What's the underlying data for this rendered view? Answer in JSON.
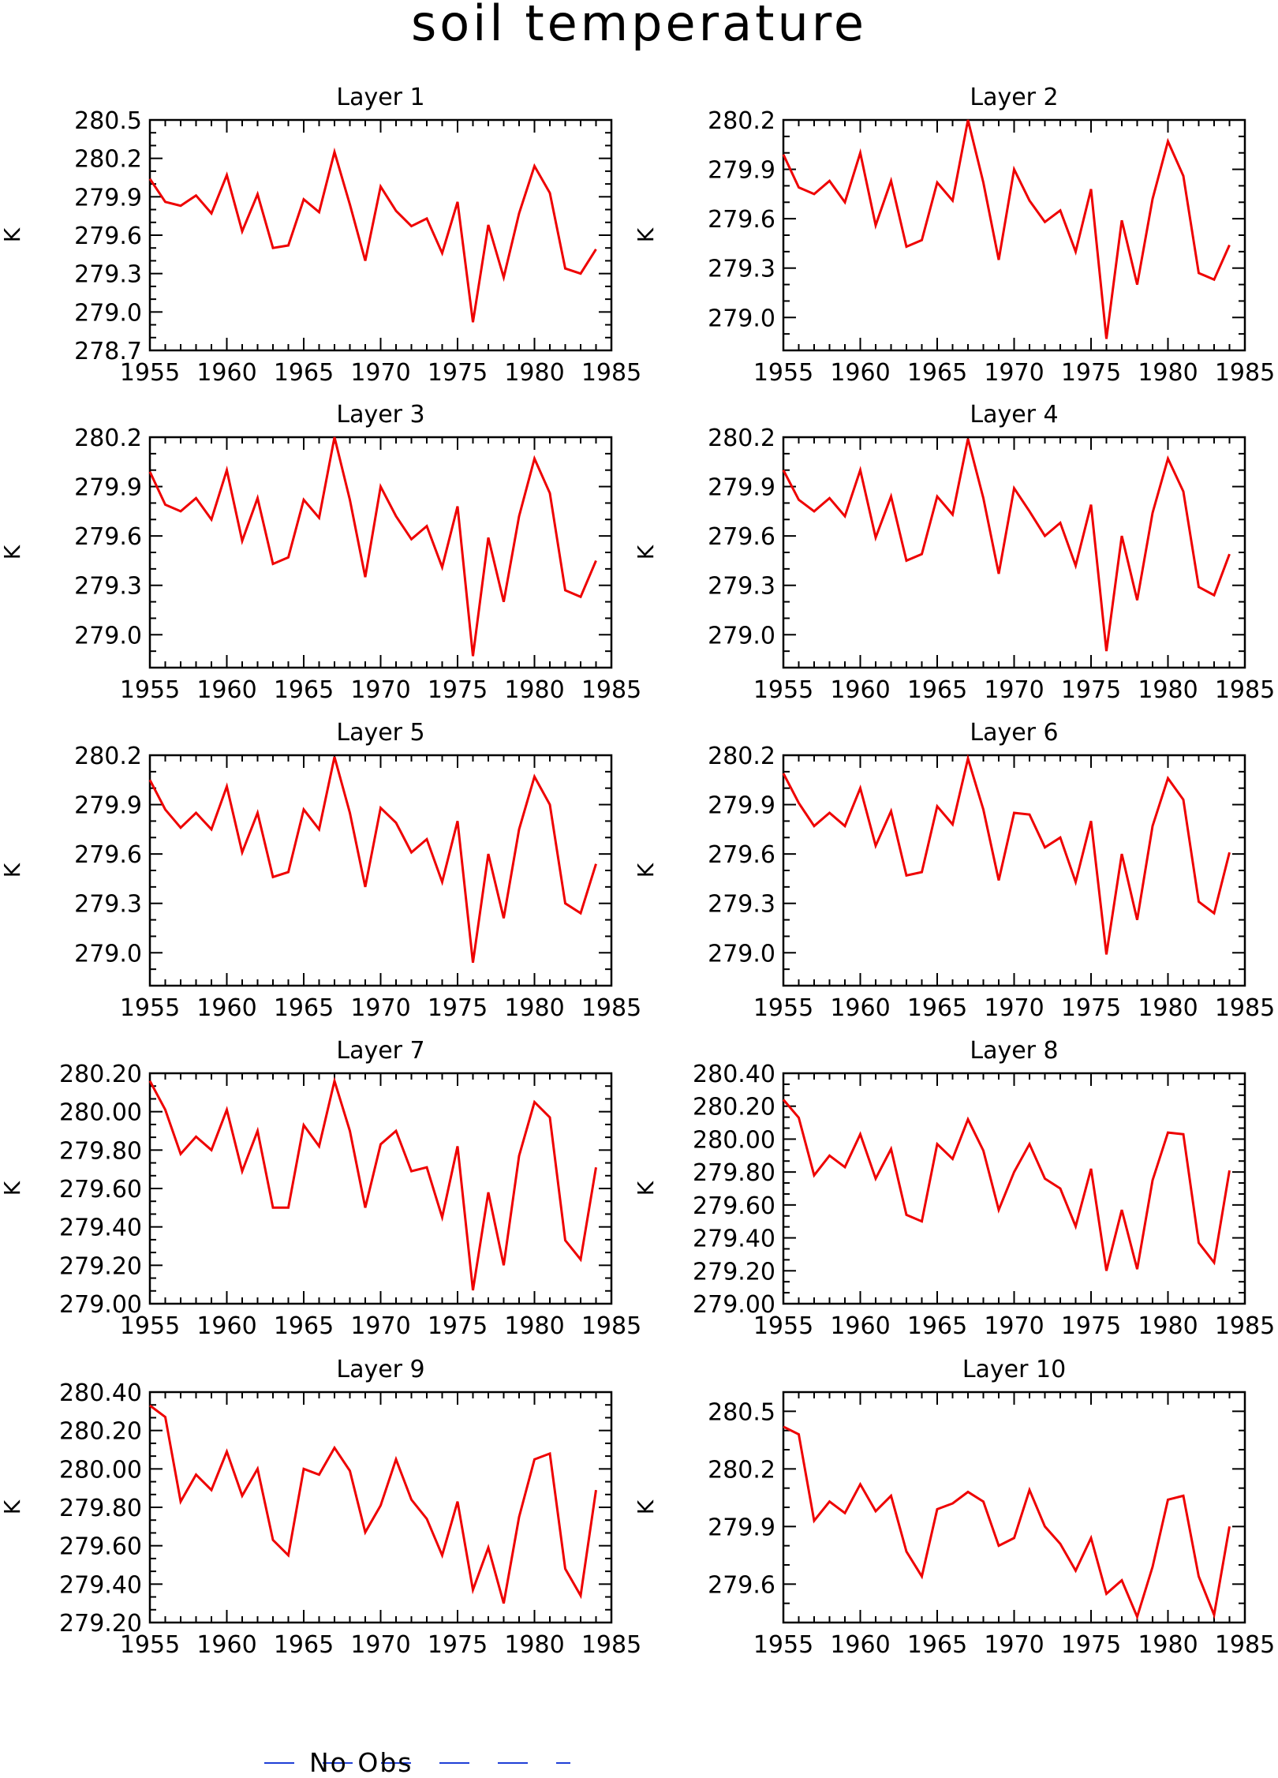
{
  "title": "soil temperature",
  "legend": {
    "label": "No Obs",
    "color": "#1f3fd6"
  },
  "series_color": "#ee0000",
  "chart_data": [
    {
      "type": "line",
      "title": "Layer 1",
      "ylabel": "K",
      "xlim": [
        1955,
        1985
      ],
      "xticks": [
        1955,
        1960,
        1965,
        1970,
        1975,
        1980,
        1985
      ],
      "ylim": [
        278.7,
        280.5
      ],
      "yticks": [
        "278.7",
        "279.0",
        "279.3",
        "279.6",
        "279.9",
        "280.2",
        "280.5"
      ],
      "x": [
        1955,
        1956,
        1957,
        1958,
        1959,
        1960,
        1961,
        1962,
        1963,
        1964,
        1965,
        1966,
        1967,
        1968,
        1969,
        1970,
        1971,
        1972,
        1973,
        1974,
        1975,
        1976,
        1977,
        1978,
        1979,
        1980,
        1981,
        1982,
        1983,
        1984
      ],
      "values": [
        280.04,
        279.86,
        279.83,
        279.91,
        279.77,
        280.07,
        279.63,
        279.92,
        279.5,
        279.52,
        279.88,
        279.78,
        280.25,
        279.84,
        279.4,
        279.98,
        279.79,
        279.67,
        279.73,
        279.46,
        279.86,
        278.92,
        279.68,
        279.27,
        279.77,
        280.14,
        279.93,
        279.34,
        279.3,
        279.49
      ]
    },
    {
      "type": "line",
      "title": "Layer 2",
      "ylabel": "K",
      "xlim": [
        1955,
        1985
      ],
      "xticks": [
        1955,
        1960,
        1965,
        1970,
        1975,
        1980,
        1985
      ],
      "ylim": [
        278.8,
        280.2
      ],
      "yticks": [
        "279.0",
        "279.3",
        "279.6",
        "279.9",
        "280.2"
      ],
      "x": [
        1955,
        1956,
        1957,
        1958,
        1959,
        1960,
        1961,
        1962,
        1963,
        1964,
        1965,
        1966,
        1967,
        1968,
        1969,
        1970,
        1971,
        1972,
        1973,
        1974,
        1975,
        1976,
        1977,
        1978,
        1979,
        1980,
        1981,
        1982,
        1983,
        1984
      ],
      "values": [
        279.99,
        279.79,
        279.75,
        279.83,
        279.7,
        280.0,
        279.56,
        279.83,
        279.43,
        279.47,
        279.82,
        279.71,
        280.2,
        279.82,
        279.35,
        279.9,
        279.71,
        279.58,
        279.65,
        279.4,
        279.78,
        278.87,
        279.59,
        279.2,
        279.72,
        280.07,
        279.86,
        279.27,
        279.23,
        279.44
      ]
    },
    {
      "type": "line",
      "title": "Layer 3",
      "ylabel": "K",
      "xlim": [
        1955,
        1985
      ],
      "xticks": [
        1955,
        1960,
        1965,
        1970,
        1975,
        1980,
        1985
      ],
      "ylim": [
        278.8,
        280.2
      ],
      "yticks": [
        "279.0",
        "279.3",
        "279.6",
        "279.9",
        "280.2"
      ],
      "x": [
        1955,
        1956,
        1957,
        1958,
        1959,
        1960,
        1961,
        1962,
        1963,
        1964,
        1965,
        1966,
        1967,
        1968,
        1969,
        1970,
        1971,
        1972,
        1973,
        1974,
        1975,
        1976,
        1977,
        1978,
        1979,
        1980,
        1981,
        1982,
        1983,
        1984
      ],
      "values": [
        279.99,
        279.79,
        279.75,
        279.83,
        279.7,
        280.0,
        279.57,
        279.83,
        279.43,
        279.47,
        279.82,
        279.71,
        280.2,
        279.82,
        279.35,
        279.9,
        279.72,
        279.58,
        279.66,
        279.41,
        279.78,
        278.87,
        279.59,
        279.2,
        279.72,
        280.07,
        279.86,
        279.27,
        279.23,
        279.45
      ]
    },
    {
      "type": "line",
      "title": "Layer 4",
      "ylabel": "K",
      "xlim": [
        1955,
        1985
      ],
      "xticks": [
        1955,
        1960,
        1965,
        1970,
        1975,
        1980,
        1985
      ],
      "ylim": [
        278.8,
        280.2
      ],
      "yticks": [
        "279.0",
        "279.3",
        "279.6",
        "279.9",
        "280.2"
      ],
      "x": [
        1955,
        1956,
        1957,
        1958,
        1959,
        1960,
        1961,
        1962,
        1963,
        1964,
        1965,
        1966,
        1967,
        1968,
        1969,
        1970,
        1971,
        1972,
        1973,
        1974,
        1975,
        1976,
        1977,
        1978,
        1979,
        1980,
        1981,
        1982,
        1983,
        1984
      ],
      "values": [
        280.0,
        279.82,
        279.75,
        279.83,
        279.72,
        280.0,
        279.59,
        279.84,
        279.45,
        279.49,
        279.84,
        279.73,
        280.19,
        279.83,
        279.37,
        279.89,
        279.75,
        279.6,
        279.68,
        279.42,
        279.79,
        278.9,
        279.6,
        279.21,
        279.74,
        280.07,
        279.87,
        279.29,
        279.24,
        279.49
      ]
    },
    {
      "type": "line",
      "title": "Layer 5",
      "ylabel": "K",
      "xlim": [
        1955,
        1985
      ],
      "xticks": [
        1955,
        1960,
        1965,
        1970,
        1975,
        1980,
        1985
      ],
      "ylim": [
        278.8,
        280.2
      ],
      "yticks": [
        "279.0",
        "279.3",
        "279.6",
        "279.9",
        "280.2"
      ],
      "x": [
        1955,
        1956,
        1957,
        1958,
        1959,
        1960,
        1961,
        1962,
        1963,
        1964,
        1965,
        1966,
        1967,
        1968,
        1969,
        1970,
        1971,
        1972,
        1973,
        1974,
        1975,
        1976,
        1977,
        1978,
        1979,
        1980,
        1981,
        1982,
        1983,
        1984
      ],
      "values": [
        280.05,
        279.87,
        279.76,
        279.85,
        279.75,
        280.01,
        279.61,
        279.85,
        279.46,
        279.49,
        279.87,
        279.75,
        280.19,
        279.85,
        279.4,
        279.88,
        279.79,
        279.61,
        279.69,
        279.43,
        279.8,
        278.94,
        279.6,
        279.21,
        279.75,
        280.07,
        279.9,
        279.3,
        279.24,
        279.54
      ]
    },
    {
      "type": "line",
      "title": "Layer 6",
      "ylabel": "K",
      "xlim": [
        1955,
        1985
      ],
      "xticks": [
        1955,
        1960,
        1965,
        1970,
        1975,
        1980,
        1985
      ],
      "ylim": [
        278.8,
        280.2
      ],
      "yticks": [
        "279.0",
        "279.3",
        "279.6",
        "279.9",
        "280.2"
      ],
      "x": [
        1955,
        1956,
        1957,
        1958,
        1959,
        1960,
        1961,
        1962,
        1963,
        1964,
        1965,
        1966,
        1967,
        1968,
        1969,
        1970,
        1971,
        1972,
        1973,
        1974,
        1975,
        1976,
        1977,
        1978,
        1979,
        1980,
        1981,
        1982,
        1983,
        1984
      ],
      "values": [
        280.09,
        279.91,
        279.77,
        279.85,
        279.77,
        280.0,
        279.65,
        279.86,
        279.47,
        279.49,
        279.89,
        279.78,
        280.18,
        279.87,
        279.44,
        279.85,
        279.84,
        279.64,
        279.7,
        279.43,
        279.8,
        278.99,
        279.6,
        279.2,
        279.77,
        280.06,
        279.93,
        279.31,
        279.24,
        279.61
      ]
    },
    {
      "type": "line",
      "title": "Layer 7",
      "ylabel": "K",
      "xlim": [
        1955,
        1985
      ],
      "xticks": [
        1955,
        1960,
        1965,
        1970,
        1975,
        1980,
        1985
      ],
      "ylim": [
        279.0,
        280.2
      ],
      "yticks": [
        "279.00",
        "279.20",
        "279.40",
        "279.60",
        "279.80",
        "280.00",
        "280.20"
      ],
      "x": [
        1955,
        1956,
        1957,
        1958,
        1959,
        1960,
        1961,
        1962,
        1963,
        1964,
        1965,
        1966,
        1967,
        1968,
        1969,
        1970,
        1971,
        1972,
        1973,
        1974,
        1975,
        1976,
        1977,
        1978,
        1979,
        1980,
        1981,
        1982,
        1983,
        1984
      ],
      "values": [
        280.16,
        280.01,
        279.78,
        279.87,
        279.8,
        280.01,
        279.69,
        279.9,
        279.5,
        279.5,
        279.93,
        279.82,
        280.16,
        279.9,
        279.5,
        279.83,
        279.9,
        279.69,
        279.71,
        279.45,
        279.82,
        279.07,
        279.58,
        279.2,
        279.77,
        280.05,
        279.97,
        279.33,
        279.23,
        279.71
      ]
    },
    {
      "type": "line",
      "title": "Layer 8",
      "ylabel": "K",
      "xlim": [
        1955,
        1985
      ],
      "xticks": [
        1955,
        1960,
        1965,
        1970,
        1975,
        1980,
        1985
      ],
      "ylim": [
        279.0,
        280.4
      ],
      "yticks": [
        "279.00",
        "279.20",
        "279.40",
        "279.60",
        "279.80",
        "280.00",
        "280.20",
        "280.40"
      ],
      "x": [
        1955,
        1956,
        1957,
        1958,
        1959,
        1960,
        1961,
        1962,
        1963,
        1964,
        1965,
        1966,
        1967,
        1968,
        1969,
        1970,
        1971,
        1972,
        1973,
        1974,
        1975,
        1976,
        1977,
        1978,
        1979,
        1980,
        1981,
        1982,
        1983,
        1984
      ],
      "values": [
        280.24,
        280.13,
        279.78,
        279.9,
        279.83,
        280.03,
        279.76,
        279.94,
        279.54,
        279.5,
        279.97,
        279.88,
        280.12,
        279.93,
        279.57,
        279.8,
        279.97,
        279.76,
        279.7,
        279.47,
        279.82,
        279.2,
        279.57,
        279.21,
        279.75,
        280.04,
        280.03,
        279.37,
        279.25,
        279.81
      ]
    },
    {
      "type": "line",
      "title": "Layer 9",
      "ylabel": "K",
      "xlim": [
        1955,
        1985
      ],
      "xticks": [
        1955,
        1960,
        1965,
        1970,
        1975,
        1980,
        1985
      ],
      "ylim": [
        279.2,
        280.4
      ],
      "yticks": [
        "279.20",
        "279.40",
        "279.60",
        "279.80",
        "280.00",
        "280.20",
        "280.40"
      ],
      "x": [
        1955,
        1956,
        1957,
        1958,
        1959,
        1960,
        1961,
        1962,
        1963,
        1964,
        1965,
        1966,
        1967,
        1968,
        1969,
        1970,
        1971,
        1972,
        1973,
        1974,
        1975,
        1976,
        1977,
        1978,
        1979,
        1980,
        1981,
        1982,
        1983,
        1984
      ],
      "values": [
        280.33,
        280.27,
        279.83,
        279.97,
        279.89,
        280.09,
        279.86,
        280.0,
        279.63,
        279.55,
        280.0,
        279.97,
        280.11,
        279.99,
        279.67,
        279.81,
        280.05,
        279.84,
        279.74,
        279.55,
        279.83,
        279.37,
        279.59,
        279.3,
        279.75,
        280.05,
        280.08,
        279.48,
        279.34,
        279.89
      ]
    },
    {
      "type": "line",
      "title": "Layer 10",
      "ylabel": "K",
      "xlim": [
        1955,
        1985
      ],
      "xticks": [
        1955,
        1960,
        1965,
        1970,
        1975,
        1980,
        1985
      ],
      "ylim": [
        279.4,
        280.6
      ],
      "yticks": [
        "279.6",
        "279.9",
        "280.2",
        "280.5"
      ],
      "x": [
        1955,
        1956,
        1957,
        1958,
        1959,
        1960,
        1961,
        1962,
        1963,
        1964,
        1965,
        1966,
        1967,
        1968,
        1969,
        1970,
        1971,
        1972,
        1973,
        1974,
        1975,
        1976,
        1977,
        1978,
        1979,
        1980,
        1981,
        1982,
        1983,
        1984
      ],
      "values": [
        280.42,
        280.38,
        279.93,
        280.03,
        279.97,
        280.12,
        279.98,
        280.06,
        279.77,
        279.64,
        279.99,
        280.02,
        280.08,
        280.03,
        279.8,
        279.84,
        280.09,
        279.9,
        279.81,
        279.67,
        279.84,
        279.55,
        279.62,
        279.43,
        279.69,
        280.04,
        280.06,
        279.64,
        279.44,
        279.9
      ]
    }
  ]
}
